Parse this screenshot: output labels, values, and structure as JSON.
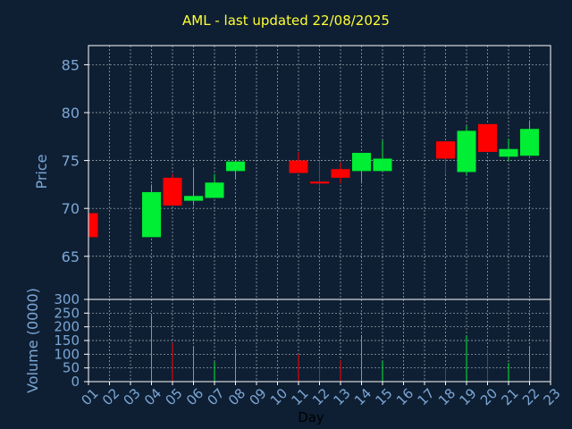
{
  "chart_data": {
    "type": "candlestick",
    "title": "AML - last updated 22/08/2025",
    "xlabel": "Day",
    "x_ticks": [
      "01",
      "02",
      "03",
      "04",
      "05",
      "06",
      "07",
      "08",
      "09",
      "10",
      "11",
      "12",
      "13",
      "14",
      "15",
      "16",
      "17",
      "18",
      "19",
      "20",
      "21",
      "22",
      "23"
    ],
    "price_panel": {
      "ylabel": "Price",
      "ylim": [
        60.5,
        87
      ],
      "y_ticks": [
        65,
        70,
        75,
        80,
        85
      ],
      "grid": true,
      "candles": [
        {
          "day": 1,
          "open": 69.5,
          "high": 69.5,
          "low": 67.0,
          "close": 67.0
        },
        {
          "day": 4,
          "open": 67.0,
          "high": 72.5,
          "low": 67.0,
          "close": 71.7
        },
        {
          "day": 5,
          "open": 73.2,
          "high": 73.6,
          "low": 70.3,
          "close": 70.3
        },
        {
          "day": 6,
          "open": 70.8,
          "high": 74.2,
          "low": 70.3,
          "close": 71.3
        },
        {
          "day": 7,
          "open": 71.1,
          "high": 73.6,
          "low": 71.1,
          "close": 72.7
        },
        {
          "day": 8,
          "open": 73.9,
          "high": 75.0,
          "low": 73.0,
          "close": 74.9
        },
        {
          "day": 11,
          "open": 75.0,
          "high": 75.9,
          "low": 73.7,
          "close": 73.7
        },
        {
          "day": 12,
          "open": 72.8,
          "high": 75.0,
          "low": 72.0,
          "close": 72.6
        },
        {
          "day": 13,
          "open": 74.1,
          "high": 74.8,
          "low": 72.6,
          "close": 73.2
        },
        {
          "day": 14,
          "open": 73.9,
          "high": 75.8,
          "low": 72.6,
          "close": 75.8
        },
        {
          "day": 15,
          "open": 73.9,
          "high": 77.1,
          "low": 73.9,
          "close": 75.2
        },
        {
          "day": 18,
          "open": 77.0,
          "high": 77.0,
          "low": 73.5,
          "close": 75.2
        },
        {
          "day": 19,
          "open": 73.8,
          "high": 78.6,
          "low": 73.5,
          "close": 78.1
        },
        {
          "day": 20,
          "open": 78.8,
          "high": 78.8,
          "low": 75.9,
          "close": 75.9
        },
        {
          "day": 21,
          "open": 75.4,
          "high": 77.3,
          "low": 74.9,
          "close": 76.2
        },
        {
          "day": 22,
          "open": 75.5,
          "high": 79.2,
          "low": 75.5,
          "close": 78.3
        }
      ]
    },
    "volume_panel": {
      "ylabel": "Volume (0000)",
      "ylim": [
        0,
        300
      ],
      "y_ticks": [
        0,
        50,
        100,
        150,
        200,
        250,
        300
      ],
      "grid": true,
      "bars": [
        {
          "day": 4,
          "value": 240,
          "direction": "up"
        },
        {
          "day": 5,
          "value": 142,
          "direction": "down"
        },
        {
          "day": 6,
          "value": 128,
          "direction": "up"
        },
        {
          "day": 7,
          "value": 72,
          "direction": "up"
        },
        {
          "day": 8,
          "value": 120,
          "direction": "up"
        },
        {
          "day": 11,
          "value": 100,
          "direction": "down"
        },
        {
          "day": 12,
          "value": 75,
          "direction": "down"
        },
        {
          "day": 13,
          "value": 78,
          "direction": "down"
        },
        {
          "day": 14,
          "value": 170,
          "direction": "up"
        },
        {
          "day": 15,
          "value": 75,
          "direction": "up"
        },
        {
          "day": 18,
          "value": 52,
          "direction": "down"
        },
        {
          "day": 19,
          "value": 168,
          "direction": "up"
        },
        {
          "day": 20,
          "value": 120,
          "direction": "down"
        },
        {
          "day": 21,
          "value": 68,
          "direction": "up"
        },
        {
          "day": 22,
          "value": 128,
          "direction": "up"
        }
      ]
    },
    "colors": {
      "background": "#0f1f33",
      "axis": "#ffffff",
      "grid": "#cfd8e0",
      "tick_text": "#7ba7d6",
      "title": "#ffff33",
      "xlabel": "#000000",
      "up": "#00ee33",
      "down": "#ff0000"
    }
  }
}
